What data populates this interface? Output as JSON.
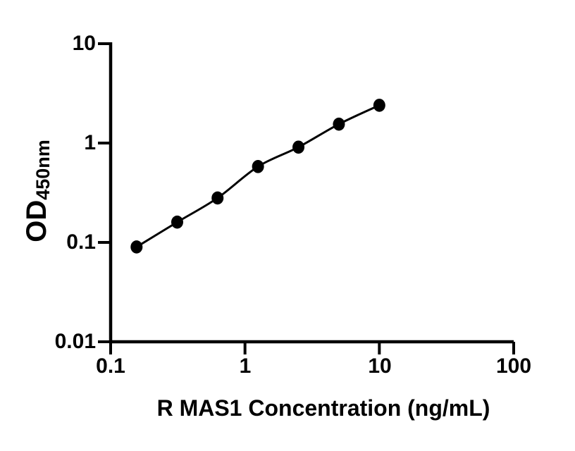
{
  "chart_data": {
    "type": "scatter",
    "title": "",
    "xlabel": "R MAS1 Concentration (ng/mL)",
    "ylabel": "OD",
    "ylabel_subscript": "450nm",
    "x_scale": "log",
    "y_scale": "log",
    "xlim": [
      0.1,
      100
    ],
    "ylim": [
      0.01,
      10
    ],
    "x_ticks": [
      0.1,
      1,
      10,
      100
    ],
    "x_tick_labels": [
      "0.1",
      "1",
      "10",
      "100"
    ],
    "y_ticks": [
      10,
      1,
      0.1,
      0.01
    ],
    "y_tick_labels": [
      "10",
      "1",
      "0.1",
      "0.01"
    ],
    "grid": false,
    "legend": "none",
    "series": [
      {
        "marker": "filled-circle",
        "line": "solid",
        "color": "#000000",
        "x": [
          0.156,
          0.313,
          0.625,
          1.25,
          2.5,
          5,
          10
        ],
        "y": [
          0.09,
          0.16,
          0.28,
          0.58,
          0.91,
          1.55,
          2.4
        ]
      }
    ],
    "colors": {
      "axis": "#000000",
      "marker": "#000000",
      "curve": "#000000",
      "background": "#ffffff",
      "text": "#000000"
    }
  }
}
